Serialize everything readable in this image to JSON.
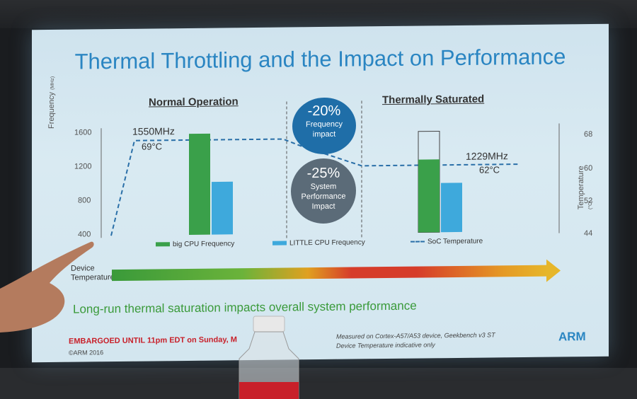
{
  "slide": {
    "title": "Thermal Throttling and the Impact on Performance",
    "normal_label": "Normal Operation",
    "saturated_label": "Thermally Saturated",
    "freq_axis_label": "Frequency",
    "freq_axis_unit": "(MHz)",
    "temp_axis_label": "Temperature",
    "temp_axis_unit": "(°C)",
    "freq_ticks": [
      "1600",
      "1200",
      "800",
      "400"
    ],
    "temp_ticks": [
      "68",
      "60",
      "52",
      "44"
    ],
    "normal_freq": "1550MHz",
    "normal_temp": "69°C",
    "sat_freq": "1229MHz",
    "sat_temp": "62°C",
    "bubble1_value": "-20%",
    "bubble1_line1": "Frequency",
    "bubble1_line2": "impact",
    "bubble2_value": "-25%",
    "bubble2_line1": "System",
    "bubble2_line2": "Performance",
    "bubble2_line3": "Impact",
    "legend_big": "big CPU Frequency",
    "legend_little": "LITTLE CPU Frequency",
    "legend_soc": "SoC Temperature",
    "device_temp_line1": "Device",
    "device_temp_line2": "Temperature",
    "subtitle": "Long-run thermal saturation impacts overall system performance",
    "embargo": "EMBARGOED UNTIL 11pm EDT on Sunday, M",
    "copyright": "©ARM 2016",
    "measured_line1": "Measured on Cortex-A57/A53 device, Geekbench v3 ST",
    "measured_line2": "Device Temperature indicative only",
    "logo": "ARM",
    "colors": {
      "title": "#2a85c2",
      "big": "#3aa04a",
      "little": "#3ea9dc",
      "soc": "#2a6fa8",
      "bubble1": "#1f6ea8",
      "bubble2": "#5b6b78"
    }
  },
  "chart_data": {
    "type": "bar",
    "categories": [
      "Normal Operation",
      "Thermally Saturated"
    ],
    "series": [
      {
        "name": "big CPU Frequency",
        "values": [
          1550,
          1229
        ]
      },
      {
        "name": "LITTLE CPU Frequency",
        "values": [
          1000,
          960
        ]
      }
    ],
    "soc_temperature": [
      69,
      62
    ],
    "ylim": [
      400,
      1600
    ],
    "y2lim": [
      44,
      68
    ]
  }
}
